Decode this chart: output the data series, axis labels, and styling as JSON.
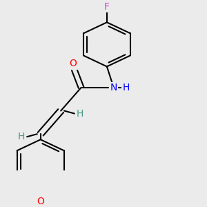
{
  "background_color": "#ebebeb",
  "atom_colors": {
    "C": "#000000",
    "H": "#4a9a8a",
    "N": "#0000ff",
    "O": "#ff0000",
    "F": "#cc44cc"
  },
  "bond_color": "#000000",
  "bond_width": 1.5,
  "figsize": [
    3.0,
    3.0
  ],
  "dpi": 100
}
